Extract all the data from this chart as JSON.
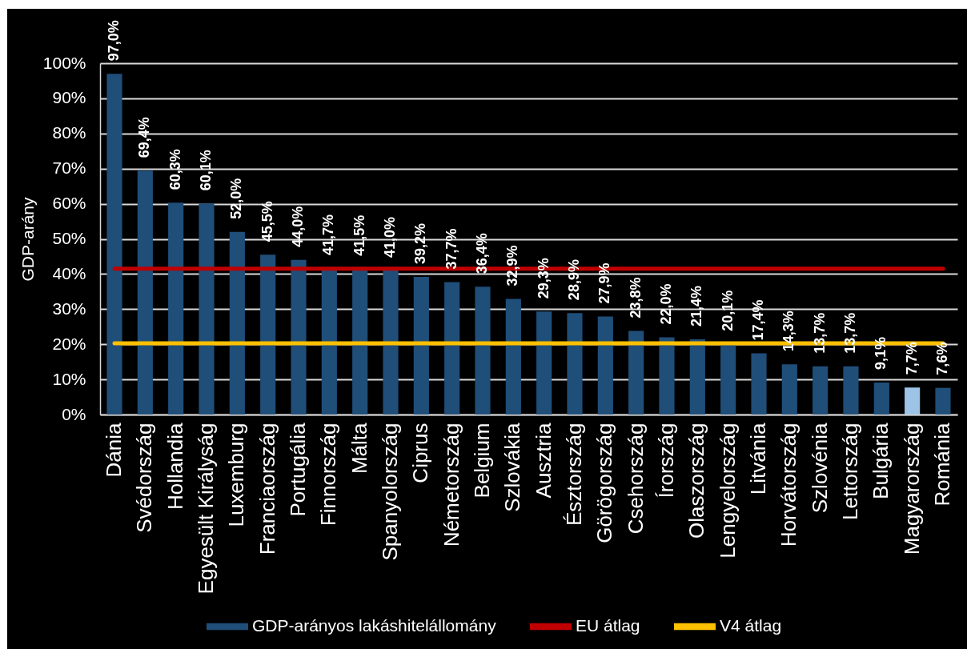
{
  "chart_data": {
    "type": "bar",
    "ylabel": "GDP-arány",
    "categories": [
      "Dánia",
      "Svédország",
      "Hollandia",
      "Egyesült Királyság",
      "Luxemburg",
      "Franciaország",
      "Portugália",
      "Finnország",
      "Málta",
      "Spanyolország",
      "Ciprus",
      "Németország",
      "Belgium",
      "Szlovákia",
      "Ausztria",
      "Észtország",
      "Görögország",
      "Csehország",
      "Írország",
      "Olaszország",
      "Lengyelország",
      "Litvánia",
      "Horvátország",
      "Szlovénia",
      "Lettország",
      "Bulgária",
      "Magyarország",
      "Románia"
    ],
    "series": [
      {
        "name": "GDP-arányos lakáshitelállomány",
        "color": "#1f4e79",
        "colors": [
          "#1f4e79",
          "#1f4e79",
          "#1f4e79",
          "#1f4e79",
          "#1f4e79",
          "#1f4e79",
          "#1f4e79",
          "#1f4e79",
          "#1f4e79",
          "#1f4e79",
          "#1f4e79",
          "#1f4e79",
          "#1f4e79",
          "#1f4e79",
          "#1f4e79",
          "#1f4e79",
          "#1f4e79",
          "#1f4e79",
          "#1f4e79",
          "#1f4e79",
          "#1f4e79",
          "#1f4e79",
          "#1f4e79",
          "#1f4e79",
          "#1f4e79",
          "#1f4e79",
          "#9dc3e6",
          "#1f4e79"
        ],
        "values": [
          97.0,
          69.4,
          60.3,
          60.1,
          52.0,
          45.5,
          44.0,
          41.7,
          41.5,
          41.0,
          39.2,
          37.7,
          36.4,
          32.9,
          29.3,
          28.9,
          27.9,
          23.8,
          22.0,
          21.4,
          20.1,
          17.4,
          14.3,
          13.7,
          13.7,
          9.1,
          7.7,
          7.6
        ],
        "value_labels": [
          "97,0%",
          "69,4%",
          "60,3%",
          "60,1%",
          "52,0%",
          "45,5%",
          "44,0%",
          "41,7%",
          "41,5%",
          "41,0%",
          "39,2%",
          "37,7%",
          "36,4%",
          "32,9%",
          "29,3%",
          "28,9%",
          "27,9%",
          "23,8%",
          "22,0%",
          "21,4%",
          "20,1%",
          "17,4%",
          "14,3%",
          "13,7%",
          "13,7%",
          "9,1%",
          "7,7%",
          "7,6%"
        ]
      },
      {
        "name": "EU átlag",
        "type": "line",
        "color": "#c00000",
        "values": [
          41.5,
          41.5,
          41.5,
          41.5,
          41.5,
          41.5,
          41.5,
          41.5,
          41.5,
          41.5,
          41.5,
          41.5,
          41.5,
          41.5,
          41.5,
          41.5,
          41.5,
          41.5,
          41.5,
          41.5,
          41.5,
          41.5,
          41.5,
          41.5,
          41.5,
          41.5,
          41.5,
          41.5
        ]
      },
      {
        "name": "V4 átlag",
        "type": "line",
        "color": "#ffc000",
        "values": [
          20.3,
          20.3,
          20.3,
          20.3,
          20.3,
          20.3,
          20.3,
          20.3,
          20.3,
          20.3,
          20.3,
          20.3,
          20.3,
          20.3,
          20.3,
          20.3,
          20.3,
          20.3,
          20.3,
          20.3,
          20.3,
          20.3,
          20.3,
          20.3,
          20.3,
          20.3,
          20.3,
          20.3
        ]
      }
    ],
    "ylim": [
      0,
      100
    ],
    "yticks": [
      {
        "value": 0,
        "label": "0%"
      },
      {
        "value": 10,
        "label": "10%"
      },
      {
        "value": 20,
        "label": "20%"
      },
      {
        "value": 30,
        "label": "30%"
      },
      {
        "value": 40,
        "label": "40%"
      },
      {
        "value": 50,
        "label": "50%"
      },
      {
        "value": 60,
        "label": "60%"
      },
      {
        "value": 70,
        "label": "70%"
      },
      {
        "value": 80,
        "label": "80%"
      },
      {
        "value": 90,
        "label": "90%"
      },
      {
        "value": 100,
        "label": "100%"
      }
    ],
    "grid": "y",
    "legend": "bottom"
  }
}
